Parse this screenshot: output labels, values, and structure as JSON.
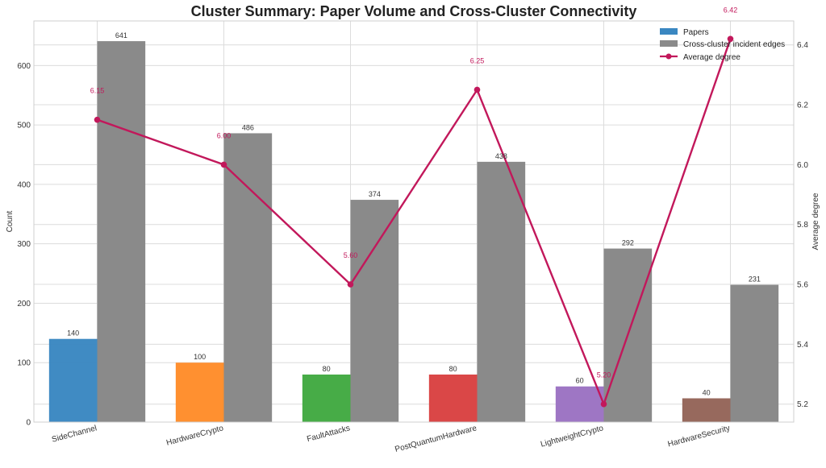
{
  "chart_data": {
    "type": "bar",
    "title": "Cluster Summary: Paper Volume and Cross-Cluster Connectivity",
    "categories": [
      "SideChannel",
      "HardwareCrypto",
      "FaultAttacks",
      "PostQuantumHardware",
      "LightweightCrypto",
      "HardwareSecurity"
    ],
    "series": [
      {
        "name": "Papers",
        "axis": "left",
        "values": [
          140,
          100,
          80,
          80,
          60,
          40
        ],
        "colors": [
          "#3a87c1",
          "#ff8c29",
          "#41a941",
          "#d94141",
          "#9b72c2",
          "#946458"
        ]
      },
      {
        "name": "Cross-cluster incident edges",
        "axis": "left",
        "values": [
          641,
          486,
          374,
          438,
          292,
          231
        ],
        "color": "#8a8a8a"
      },
      {
        "name": "Average degree",
        "axis": "right",
        "type": "line",
        "values": [
          6.15,
          6.0,
          5.6,
          6.25,
          5.2,
          6.42
        ],
        "labels": [
          "6.15",
          "6.00",
          "5.60",
          "6.25",
          "5.20",
          "6.42"
        ],
        "color": "#c2185b"
      }
    ],
    "ylabel": "Count",
    "y2label": "Average degree",
    "ylim": [
      0,
      675
    ],
    "y2lim": [
      5.14,
      6.48
    ],
    "yticks": [
      0,
      100,
      200,
      300,
      400,
      500,
      600
    ],
    "y2ticks": [
      5.2,
      5.4,
      5.6,
      5.8,
      6.0,
      6.2,
      6.4
    ],
    "y2tick_labels": [
      "5.2",
      "5.4",
      "5.6",
      "5.8",
      "6.0",
      "6.2",
      "6.4"
    ],
    "grid": true,
    "legend_position": "top-right"
  }
}
